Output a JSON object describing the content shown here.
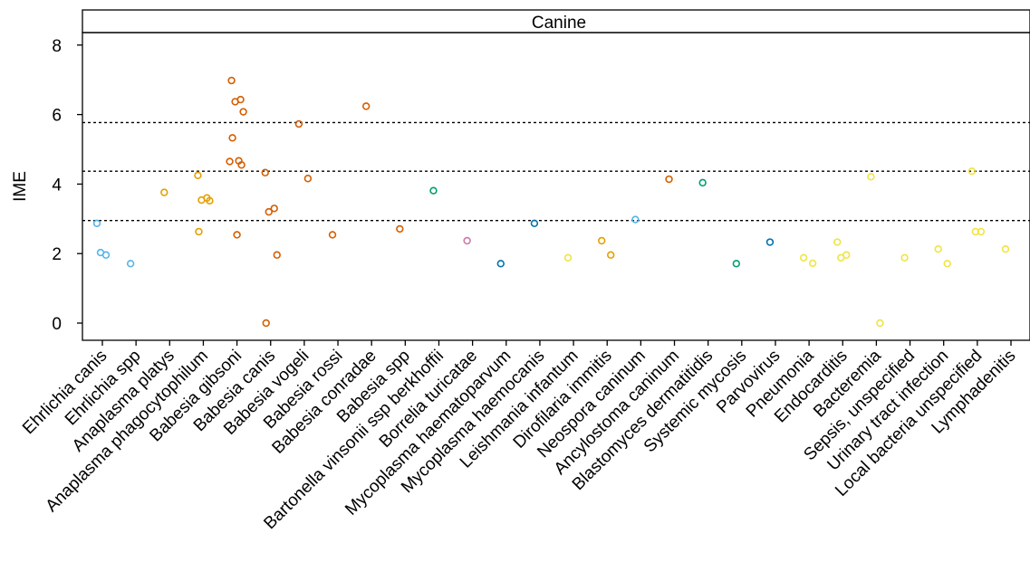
{
  "chart_data": {
    "type": "scatter",
    "panel_title": "Canine",
    "xlabel": "",
    "ylabel": "IME",
    "ylim": [
      -0.5,
      9.0
    ],
    "yticks": [
      0,
      2,
      4,
      6,
      8
    ],
    "reference_lines": [
      2.95,
      4.37,
      5.77
    ],
    "categories": [
      "Ehrlichia canis",
      "Ehrlichia spp",
      "Anaplasma platys",
      "Anaplasma phagocytophilum",
      "Babesia gibsoni",
      "Babesia canis",
      "Babesia vogeli",
      "Babesia rossi",
      "Babesia conradae",
      "Babesia spp",
      "Bartonella vinsonii ssp berkhoffii",
      "Borrelia turicatae",
      "Mycoplasma haematoparvum",
      "Mycoplasma haemocanis",
      "Leishmania infantum",
      "Dirofilaria immitis",
      "Neospora caninum",
      "Ancylostoma caninum",
      "Blastomyces dermatitidis",
      "Systemic mycosis",
      "Parvovirus",
      "Pneumonia",
      "Endocarditis",
      "Bacteremia",
      "Sepsis, unspecified",
      "Urinary tract infection",
      "Local bacteria unspecified",
      "Lymphadenitis"
    ],
    "colors": {
      "sky_blue": "#56b4e9",
      "orange": "#e69f00",
      "vermillion": "#d55e00",
      "bluish_green": "#009e73",
      "reddish_purple": "#cc79a7",
      "blue": "#0072b2",
      "yellow": "#f0e442"
    },
    "points": [
      {
        "category": "Ehrlichia canis",
        "y": 2.87,
        "color": "sky_blue"
      },
      {
        "category": "Ehrlichia canis",
        "y": 1.96,
        "color": "sky_blue"
      },
      {
        "category": "Ehrlichia canis",
        "y": 2.03,
        "color": "sky_blue"
      },
      {
        "category": "Ehrlichia spp",
        "y": 1.71,
        "color": "sky_blue"
      },
      {
        "category": "Anaplasma platys",
        "y": 3.76,
        "color": "orange"
      },
      {
        "category": "Anaplasma phagocytophilum",
        "y": 4.25,
        "color": "orange"
      },
      {
        "category": "Anaplasma phagocytophilum",
        "y": 3.6,
        "color": "orange"
      },
      {
        "category": "Anaplasma phagocytophilum",
        "y": 3.54,
        "color": "orange"
      },
      {
        "category": "Anaplasma phagocytophilum",
        "y": 3.52,
        "color": "orange"
      },
      {
        "category": "Anaplasma phagocytophilum",
        "y": 2.63,
        "color": "orange"
      },
      {
        "category": "Babesia gibsoni",
        "y": 6.98,
        "color": "vermillion"
      },
      {
        "category": "Babesia gibsoni",
        "y": 6.43,
        "color": "vermillion"
      },
      {
        "category": "Babesia gibsoni",
        "y": 6.37,
        "color": "vermillion"
      },
      {
        "category": "Babesia gibsoni",
        "y": 6.08,
        "color": "vermillion"
      },
      {
        "category": "Babesia gibsoni",
        "y": 5.33,
        "color": "vermillion"
      },
      {
        "category": "Babesia gibsoni",
        "y": 4.67,
        "color": "vermillion"
      },
      {
        "category": "Babesia gibsoni",
        "y": 4.65,
        "color": "vermillion"
      },
      {
        "category": "Babesia gibsoni",
        "y": 4.55,
        "color": "vermillion"
      },
      {
        "category": "Babesia gibsoni",
        "y": 2.54,
        "color": "vermillion"
      },
      {
        "category": "Babesia canis",
        "y": 4.33,
        "color": "vermillion"
      },
      {
        "category": "Babesia canis",
        "y": 3.3,
        "color": "vermillion"
      },
      {
        "category": "Babesia canis",
        "y": 3.2,
        "color": "vermillion"
      },
      {
        "category": "Babesia canis",
        "y": 1.96,
        "color": "vermillion"
      },
      {
        "category": "Babesia canis",
        "y": 0.0,
        "color": "vermillion"
      },
      {
        "category": "Babesia vogeli",
        "y": 5.73,
        "color": "vermillion"
      },
      {
        "category": "Babesia vogeli",
        "y": 4.16,
        "color": "vermillion"
      },
      {
        "category": "Babesia rossi",
        "y": 2.54,
        "color": "vermillion"
      },
      {
        "category": "Babesia conradae",
        "y": 6.24,
        "color": "vermillion"
      },
      {
        "category": "Babesia spp",
        "y": 2.71,
        "color": "vermillion"
      },
      {
        "category": "Bartonella vinsonii ssp berkhoffii",
        "y": 3.81,
        "color": "bluish_green"
      },
      {
        "category": "Borrelia turicatae",
        "y": 2.37,
        "color": "reddish_purple"
      },
      {
        "category": "Mycoplasma haematoparvum",
        "y": 1.71,
        "color": "blue"
      },
      {
        "category": "Mycoplasma haemocanis",
        "y": 2.87,
        "color": "blue"
      },
      {
        "category": "Leishmania infantum",
        "y": 1.88,
        "color": "yellow"
      },
      {
        "category": "Dirofilaria immitis",
        "y": 2.37,
        "color": "orange"
      },
      {
        "category": "Dirofilaria immitis",
        "y": 1.96,
        "color": "orange"
      },
      {
        "category": "Neospora caninum",
        "y": 2.98,
        "color": "sky_blue"
      },
      {
        "category": "Ancylostoma caninum",
        "y": 4.14,
        "color": "vermillion"
      },
      {
        "category": "Blastomyces dermatitidis",
        "y": 4.04,
        "color": "bluish_green"
      },
      {
        "category": "Systemic mycosis",
        "y": 1.71,
        "color": "bluish_green"
      },
      {
        "category": "Parvovirus",
        "y": 2.33,
        "color": "blue"
      },
      {
        "category": "Pneumonia",
        "y": 1.88,
        "color": "yellow"
      },
      {
        "category": "Pneumonia",
        "y": 1.72,
        "color": "yellow"
      },
      {
        "category": "Endocarditis",
        "y": 2.33,
        "color": "yellow"
      },
      {
        "category": "Endocarditis",
        "y": 1.96,
        "color": "yellow"
      },
      {
        "category": "Endocarditis",
        "y": 1.88,
        "color": "yellow"
      },
      {
        "category": "Bacteremia",
        "y": 4.21,
        "color": "yellow"
      },
      {
        "category": "Bacteremia",
        "y": 0.0,
        "color": "yellow"
      },
      {
        "category": "Sepsis, unspecified",
        "y": 1.88,
        "color": "yellow"
      },
      {
        "category": "Urinary tract infection",
        "y": 2.13,
        "color": "yellow"
      },
      {
        "category": "Urinary tract infection",
        "y": 1.71,
        "color": "yellow"
      },
      {
        "category": "Local bacteria unspecified",
        "y": 4.37,
        "color": "yellow"
      },
      {
        "category": "Local bacteria unspecified",
        "y": 2.63,
        "color": "yellow"
      },
      {
        "category": "Local bacteria unspecified",
        "y": 2.63,
        "color": "yellow"
      },
      {
        "category": "Lymphadenitis",
        "y": 2.13,
        "color": "yellow"
      }
    ],
    "grid": false,
    "legend": "none"
  }
}
